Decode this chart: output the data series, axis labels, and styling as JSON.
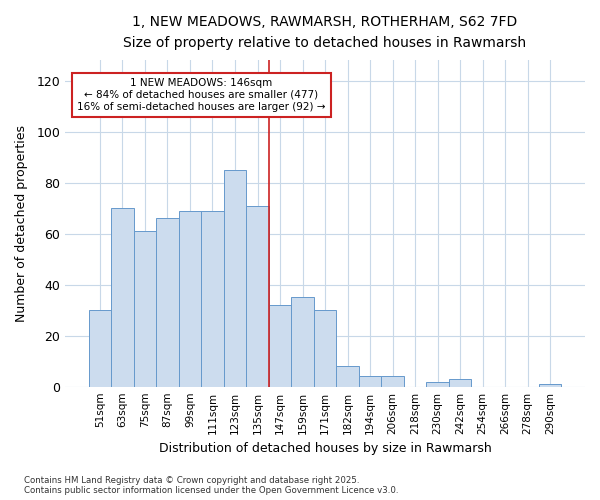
{
  "title_line1": "1, NEW MEADOWS, RAWMARSH, ROTHERHAM, S62 7FD",
  "title_line2": "Size of property relative to detached houses in Rawmarsh",
  "xlabel": "Distribution of detached houses by size in Rawmarsh",
  "ylabel": "Number of detached properties",
  "footer_line1": "Contains HM Land Registry data © Crown copyright and database right 2025.",
  "footer_line2": "Contains public sector information licensed under the Open Government Licence v3.0.",
  "annotation_line1": "1 NEW MEADOWS: 146sqm",
  "annotation_line2": "← 84% of detached houses are smaller (477)",
  "annotation_line3": "16% of semi-detached houses are larger (92) →",
  "bar_labels": [
    "51sqm",
    "63sqm",
    "75sqm",
    "87sqm",
    "99sqm",
    "111sqm",
    "123sqm",
    "135sqm",
    "147sqm",
    "159sqm",
    "171sqm",
    "182sqm",
    "194sqm",
    "206sqm",
    "218sqm",
    "230sqm",
    "242sqm",
    "254sqm",
    "266sqm",
    "278sqm",
    "290sqm"
  ],
  "bar_values": [
    30,
    70,
    61,
    66,
    69,
    69,
    85,
    71,
    32,
    35,
    30,
    8,
    4,
    4,
    0,
    2,
    3,
    0,
    0,
    0,
    1
  ],
  "bar_color": "#ccdcee",
  "bar_edge_color": "#6699cc",
  "background_color": "#ffffff",
  "grid_color": "#c8d8e8",
  "vline_color": "#cc2222",
  "annotation_box_edge_color": "#cc2222",
  "annotation_box_face_color": "#ffffff",
  "ylim": [
    0,
    128
  ],
  "yticks": [
    0,
    20,
    40,
    60,
    80,
    100,
    120
  ],
  "vline_bar_index": 8
}
